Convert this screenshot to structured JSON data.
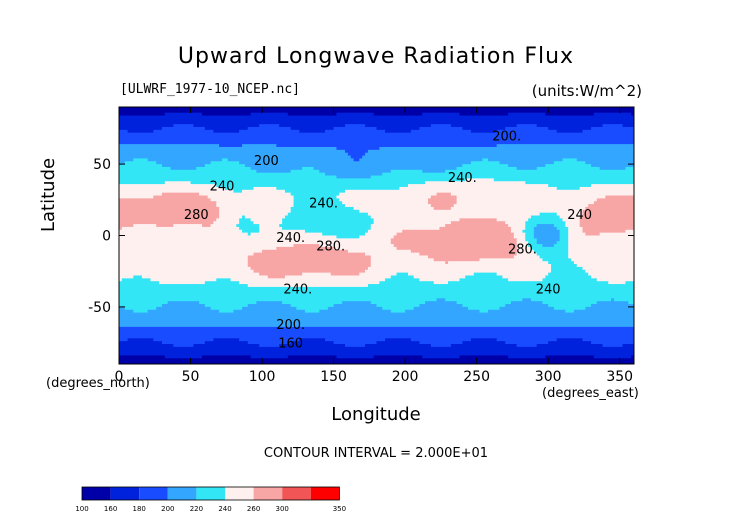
{
  "chart_data": {
    "type": "heatmap",
    "title": "Upward Longwave Radiation Flux",
    "file": "[ULWRF_1977-10_NCEP.nc]",
    "units": "(units:W/m^2)",
    "xlabel": "Longitude",
    "ylabel": "Latitude",
    "x_unit": "(degrees_east)",
    "y_unit": "(degrees_north)",
    "xlim": [
      0,
      360
    ],
    "ylim": [
      -90,
      90
    ],
    "xticks": [
      "0",
      "50",
      "100",
      "150",
      "200",
      "250",
      "300",
      "350"
    ],
    "yticks": [
      "50",
      "0",
      "-50"
    ],
    "contour_interval": "CONTOUR INTERVAL = 2.000E+01",
    "contour_labels": [
      {
        "text": "200.",
        "lon": 271,
        "lat": 69
      },
      {
        "text": "200",
        "lon": 103,
        "lat": 52
      },
      {
        "text": "240.",
        "lon": 240,
        "lat": 40
      },
      {
        "text": "240",
        "lon": 72,
        "lat": 34
      },
      {
        "text": "280",
        "lon": 54,
        "lat": 14
      },
      {
        "text": "240.",
        "lon": 143,
        "lat": 22
      },
      {
        "text": "240",
        "lon": 322,
        "lat": 14
      },
      {
        "text": "240.",
        "lon": 120,
        "lat": -2
      },
      {
        "text": "280.",
        "lon": 148,
        "lat": -8
      },
      {
        "text": "280.",
        "lon": 282,
        "lat": -10
      },
      {
        "text": "240.",
        "lon": 125,
        "lat": -38
      },
      {
        "text": "240",
        "lon": 300,
        "lat": -38
      },
      {
        "text": "200.",
        "lon": 120,
        "lat": -63
      },
      {
        "text": "160",
        "lon": 120,
        "lat": -76
      }
    ],
    "colorbar": {
      "levels": [
        "100",
        "160",
        "180",
        "200",
        "220",
        "240",
        "260",
        "300",
        "350"
      ],
      "colors": [
        "#0000a8",
        "#0022dd",
        "#1a4cff",
        "#33a6ff",
        "#33e6f5",
        "#fff0f0",
        "#f7a5a5",
        "#f25555",
        "#ff0000"
      ]
    }
  }
}
